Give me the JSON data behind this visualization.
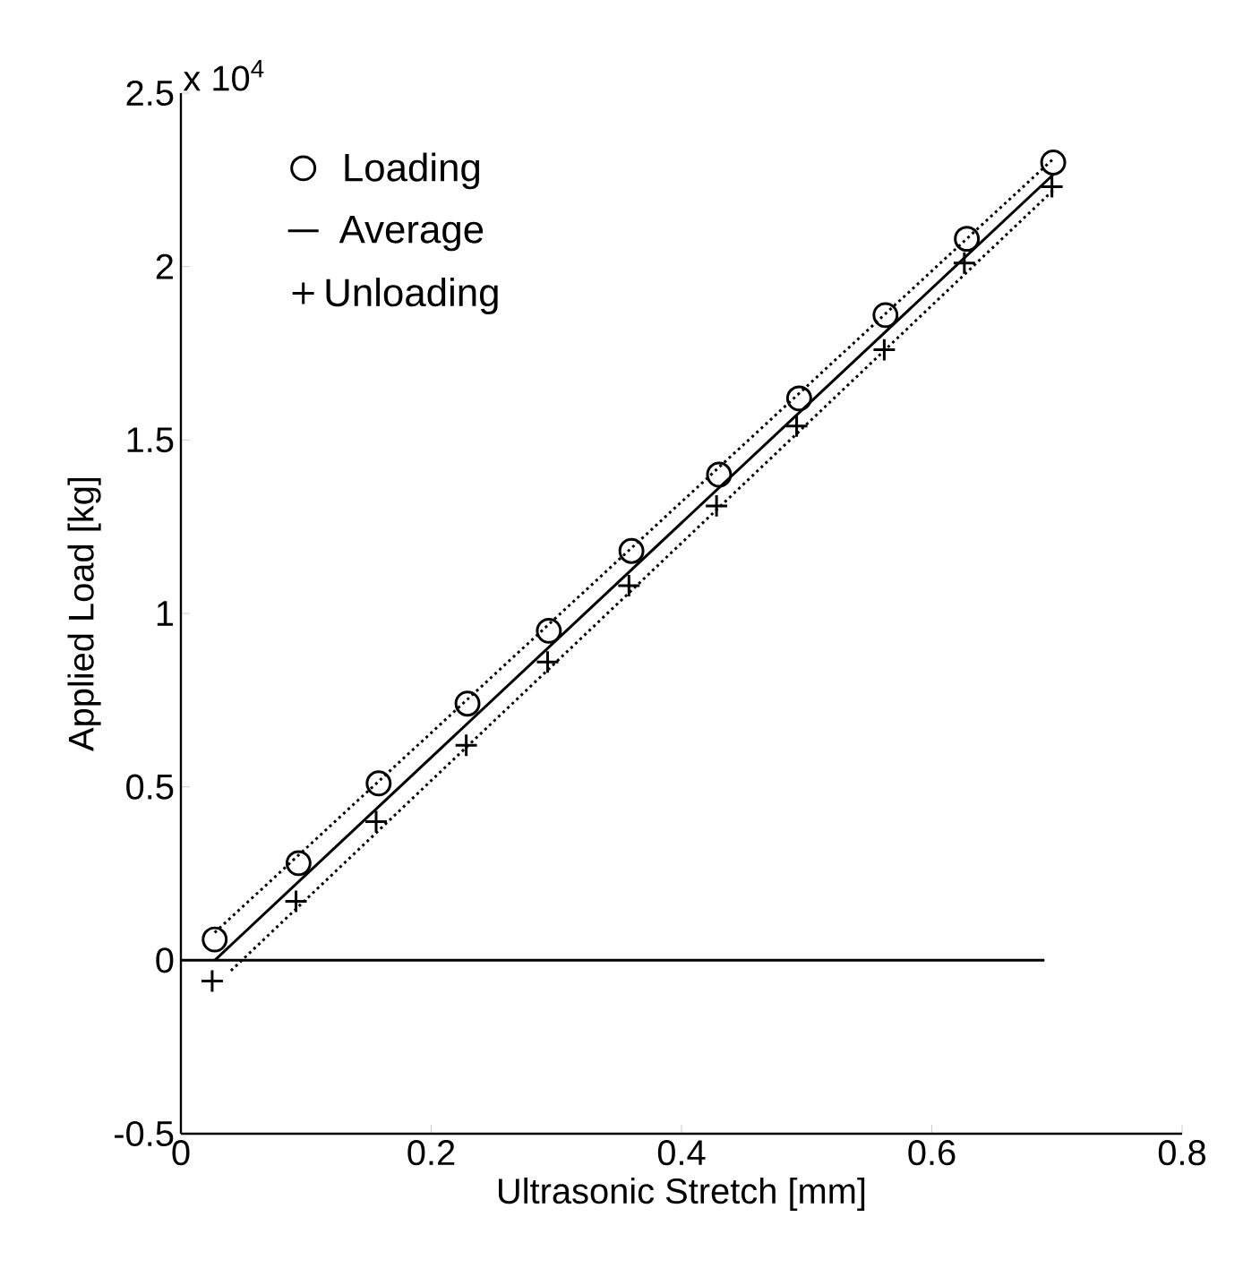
{
  "chart_data": {
    "type": "scatter",
    "xlabel": "Ultrasonic Stretch [mm]",
    "ylabel": "Applied Load [kg]",
    "annotations": [
      "x 10$^{4}$"
    ],
    "xlim": [
      0,
      0.8
    ],
    "xticks": [
      0,
      0.2,
      0.4,
      0.6,
      0.8
    ],
    "ylim": [
      -0.5,
      2.5
    ],
    "yticks": [
      -0.5,
      0,
      0.5,
      1,
      1.5,
      2,
      2.5
    ],
    "grid": false,
    "legend": "top left",
    "series": [
      {
        "name": "Loading",
        "marker": "circle",
        "color": "#000000",
        "x": [
          0.027,
          0.094,
          0.158,
          0.229,
          0.294,
          0.36,
          0.43,
          0.494,
          0.563,
          0.628,
          0.697
        ],
        "values": [
          0.06,
          0.28,
          0.51,
          0.74,
          0.95,
          1.18,
          1.4,
          1.62,
          1.86,
          2.08,
          2.3
        ]
      },
      {
        "name": "Average",
        "type": "line",
        "line_style": "solid",
        "marker": "none",
        "color": "#000000",
        "x": [
          0.027,
          0.697
        ],
        "values": [
          0.0,
          2.265
        ]
      },
      {
        "name": "Unloading",
        "marker": "cross",
        "color": "#000000",
        "x": [
          0.025,
          0.092,
          0.156,
          0.228,
          0.293,
          0.358,
          0.428,
          0.492,
          0.562,
          0.626,
          0.696
        ],
        "values": [
          -0.06,
          0.17,
          0.4,
          0.62,
          0.86,
          1.08,
          1.31,
          1.54,
          1.76,
          2.01,
          2.23
        ]
      },
      {
        "type": "line",
        "line_style": "dotted",
        "marker": "none",
        "color": "#000000",
        "x": [
          0.027,
          0.697
        ],
        "values": [
          0.08,
          2.31
        ]
      },
      {
        "type": "line",
        "line_style": "dotted",
        "marker": "none",
        "color": "#000000",
        "x": [
          0.04,
          0.697
        ],
        "values": [
          -0.03,
          2.22
        ]
      },
      {
        "type": "line",
        "line_style": "solid",
        "marker": "none",
        "color": "#000000",
        "x": [
          0,
          0.69
        ],
        "values": [
          0,
          0
        ]
      }
    ]
  }
}
